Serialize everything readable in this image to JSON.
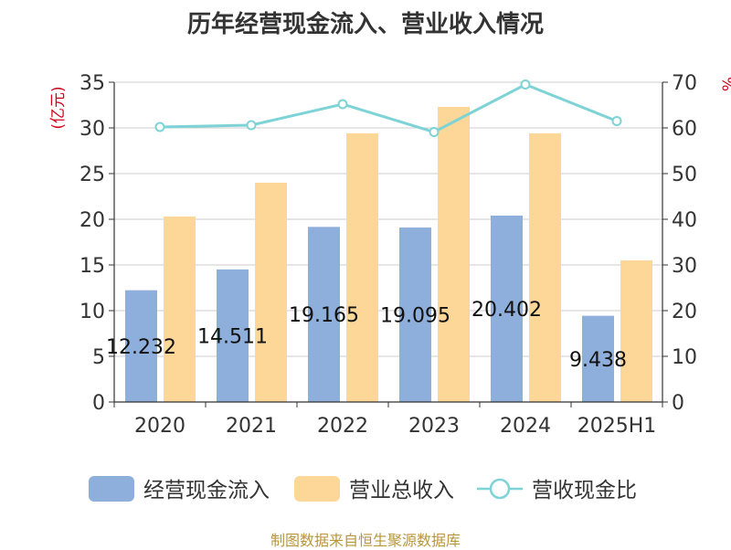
{
  "title": "历年经营现金流入、营业收入情况",
  "source": "制图数据来自恒生聚源数据库",
  "chart_data": {
    "type": "bar",
    "categories": [
      "2020",
      "2021",
      "2022",
      "2023",
      "2024",
      "2025H1"
    ],
    "y_left": {
      "unit": "(亿元)",
      "ylim": [
        0,
        35
      ],
      "ticks": [
        0,
        5,
        10,
        15,
        20,
        25,
        30,
        35
      ]
    },
    "y_right": {
      "unit": "%",
      "ylim": [
        0,
        70
      ],
      "ticks": [
        0,
        10,
        20,
        30,
        40,
        50,
        60,
        70
      ]
    },
    "series": [
      {
        "name": "经营现金流入",
        "type": "bar",
        "axis": "left",
        "color": "#8eaedb",
        "values": [
          12.232,
          14.511,
          19.165,
          19.095,
          20.402,
          9.438
        ],
        "labels": [
          "12.232",
          "14.511",
          "19.165",
          "19.095",
          "20.402",
          "9.438"
        ]
      },
      {
        "name": "营业总收入",
        "type": "bar",
        "axis": "left",
        "color": "#fdd797",
        "values": [
          20.3,
          24.0,
          29.4,
          32.3,
          29.4,
          15.5
        ]
      },
      {
        "name": "营收现金比",
        "type": "line",
        "axis": "right",
        "color": "#7dd3d6",
        "values": [
          60.2,
          60.6,
          65.2,
          59.1,
          69.5,
          61.5
        ]
      }
    ],
    "grid": true,
    "legend_position": "bottom"
  }
}
